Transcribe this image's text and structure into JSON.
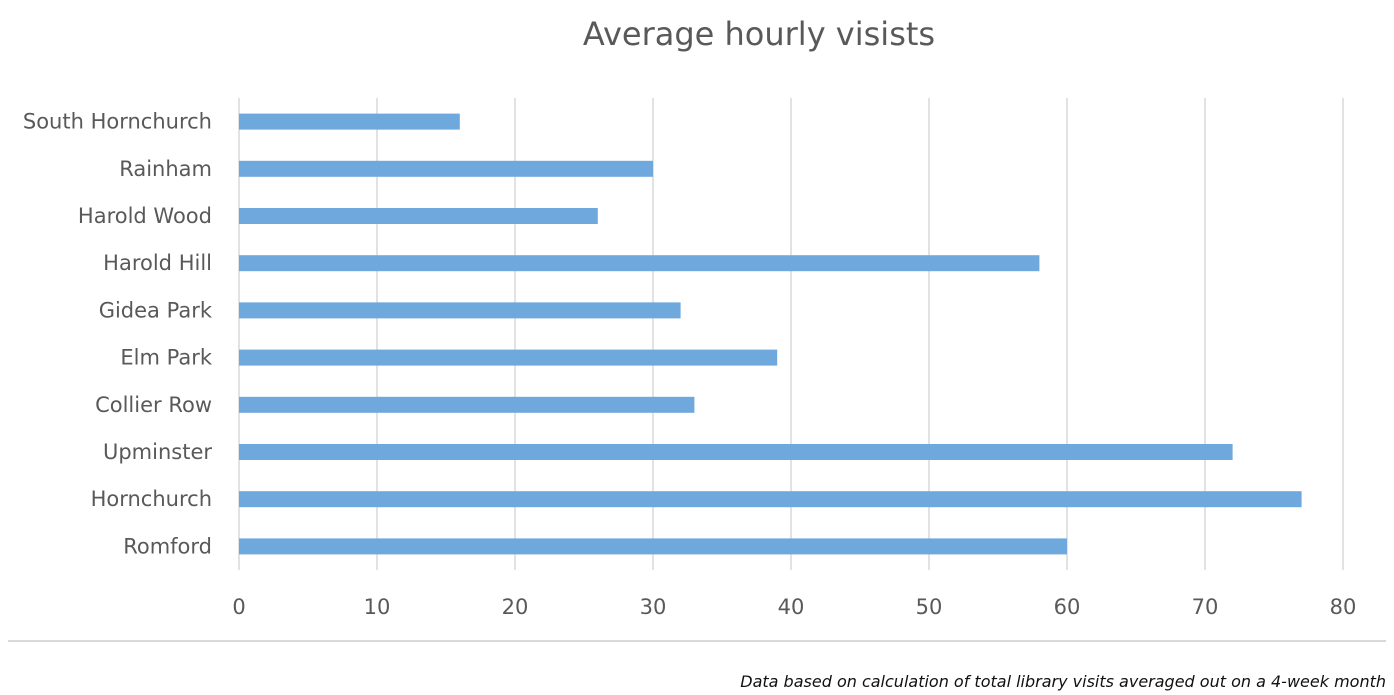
{
  "chart_data": {
    "type": "bar",
    "orientation": "horizontal",
    "title": "Average hourly visists",
    "xlabel": "",
    "ylabel": "",
    "categories": [
      "South Hornchurch",
      "Rainham",
      "Harold Wood",
      "Harold Hill",
      "Gidea Park",
      "Elm Park",
      "Collier Row",
      "Upminster",
      "Hornchurch",
      "Romford"
    ],
    "values": [
      16,
      30,
      26,
      58,
      32,
      39,
      33,
      72,
      77,
      60
    ],
    "xlim": [
      0,
      80
    ],
    "xticks": [
      0,
      10,
      20,
      30,
      40,
      50,
      60,
      70,
      80
    ],
    "grid": true,
    "legend": "none",
    "bar_color": "#6fa8dc",
    "note": "Data based on calculation of total library visits averaged out on a 4-week month"
  }
}
